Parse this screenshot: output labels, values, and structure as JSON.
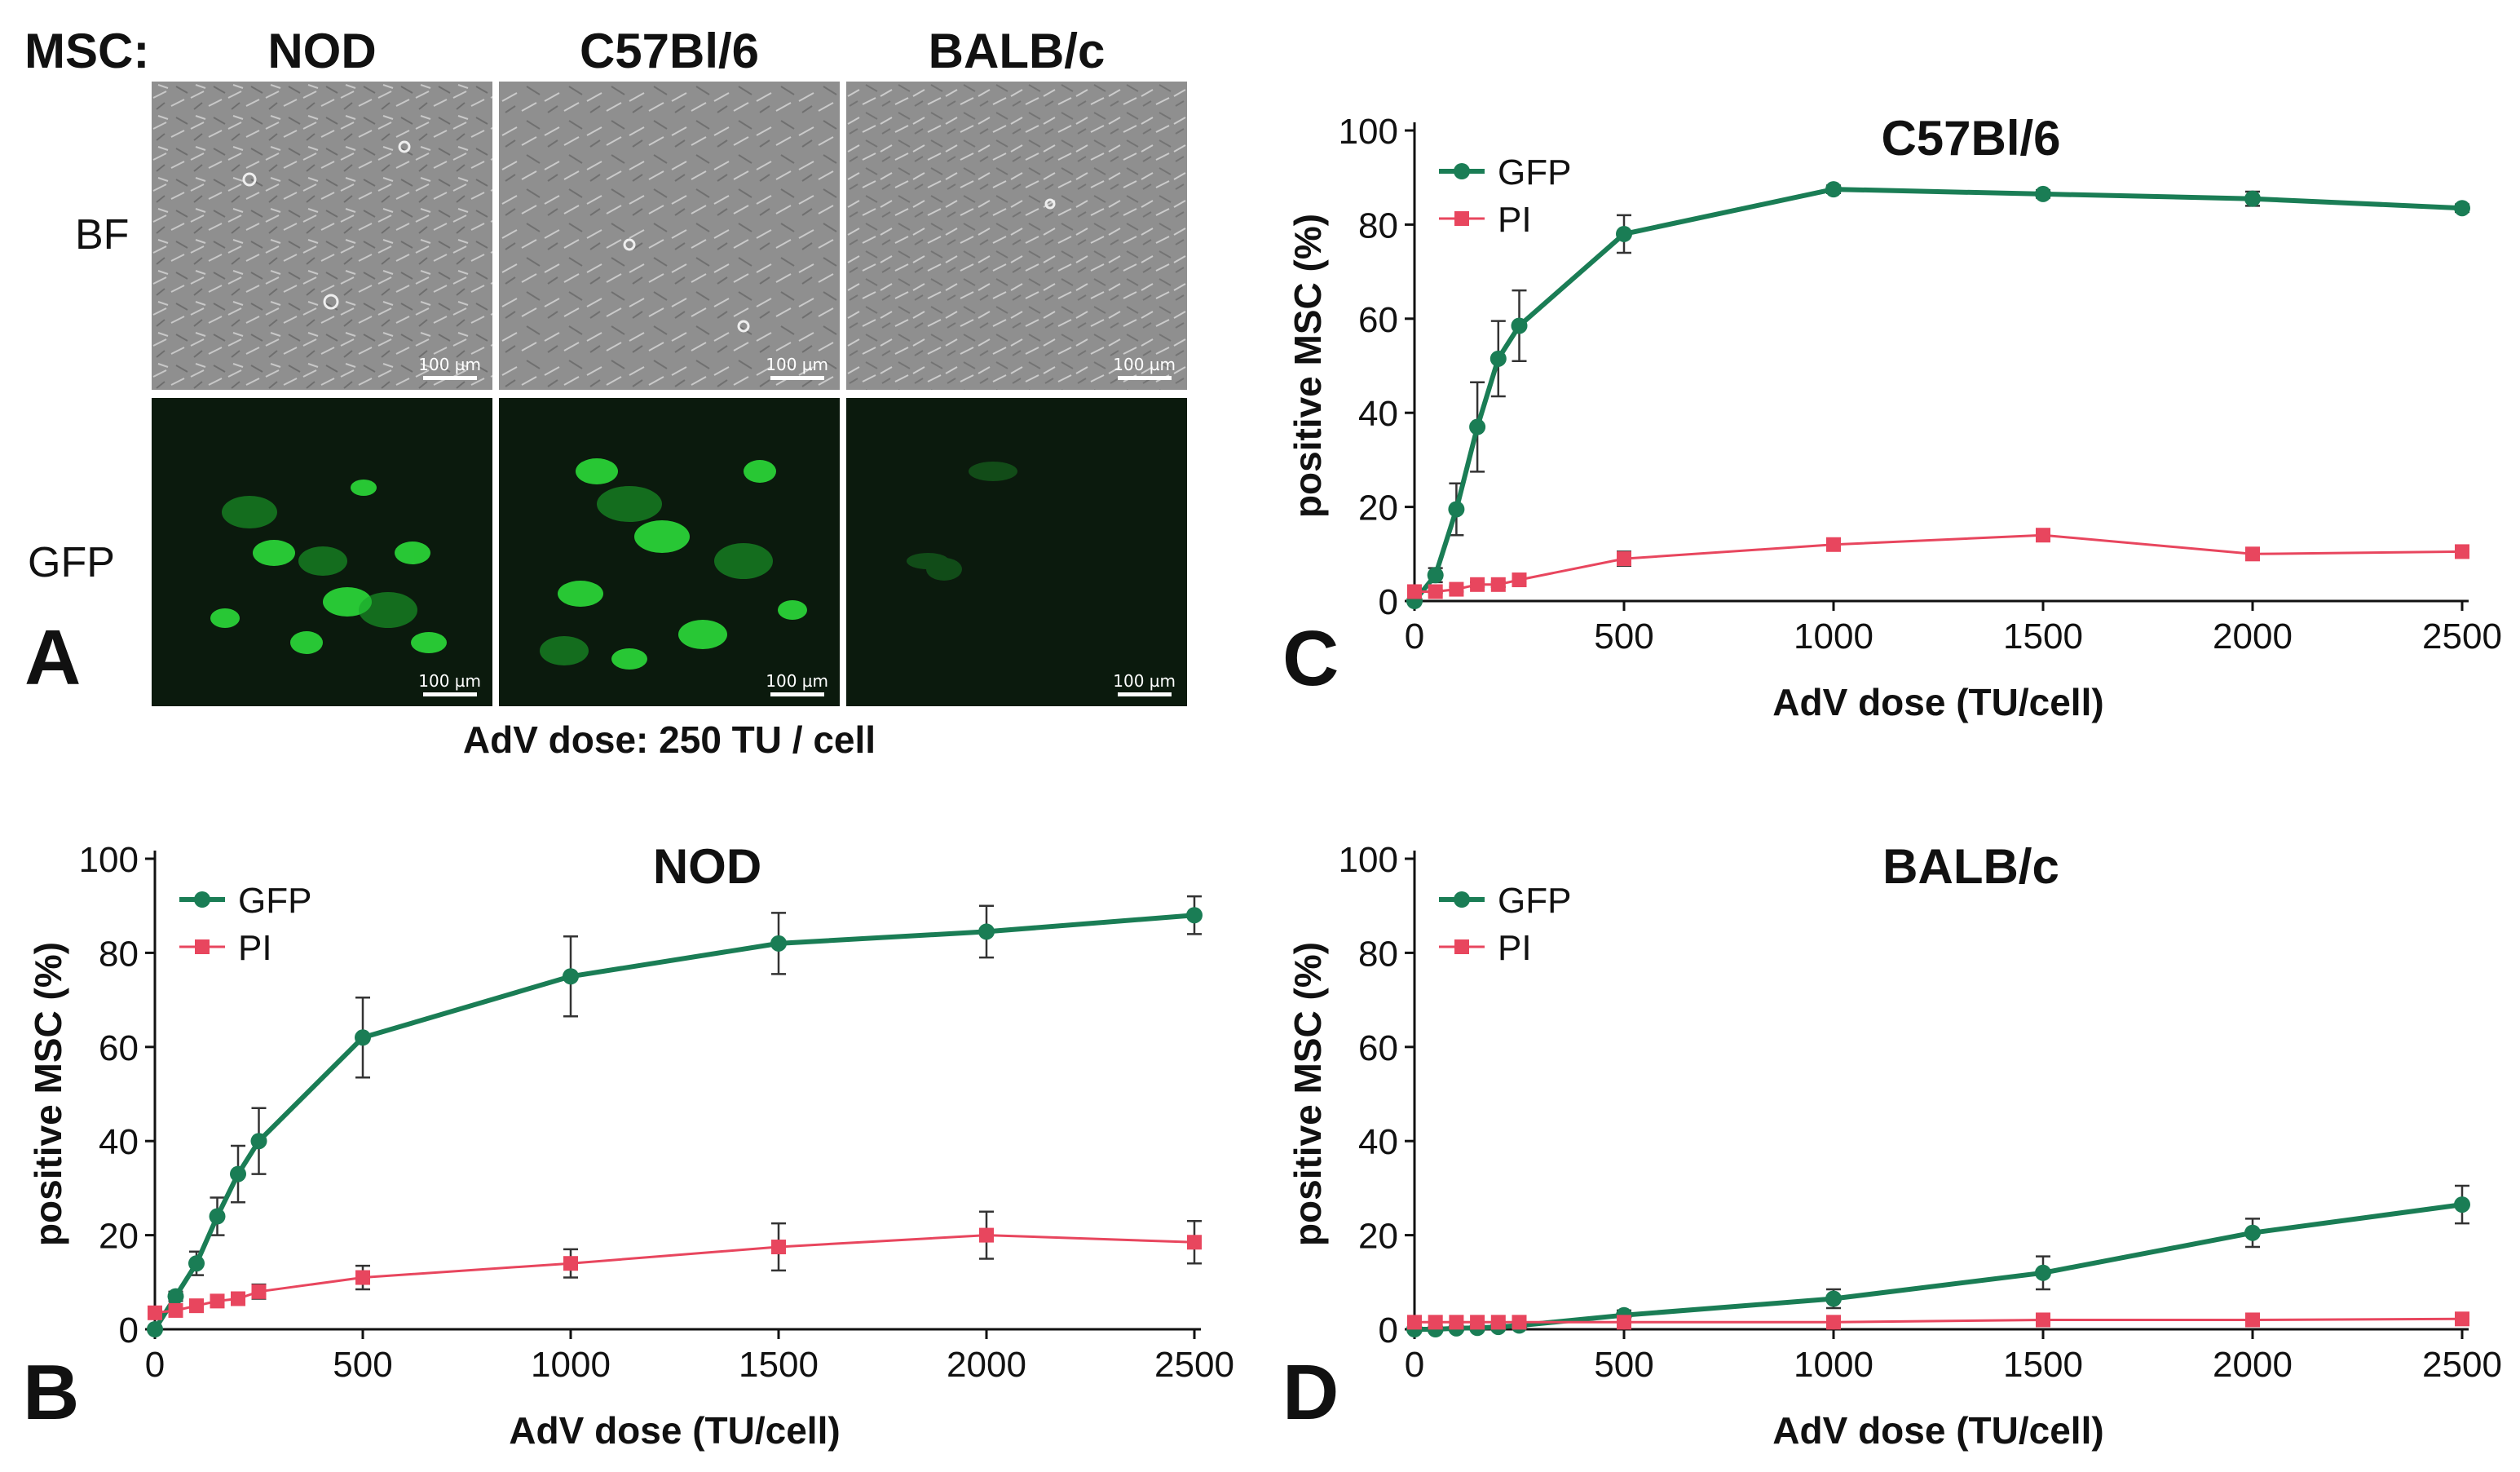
{
  "panel_a": {
    "letter": "A",
    "header_label": "MSC:",
    "columns": [
      "NOD",
      "C57Bl/6",
      "BALB/c"
    ],
    "rows": [
      "BF",
      "GFP"
    ],
    "scale_bar": "100 µm",
    "caption": "AdV dose: 250 TU / cell",
    "colors": {
      "brightfield": "#8f8f8f",
      "fluorescence": "#0b1a0d",
      "gfp_signal": "#2ee63c"
    }
  },
  "colors": {
    "gfp": "#1a7d55",
    "pi": "#e8465e",
    "error_bar": "#333333"
  },
  "chart_data": [
    {
      "panel": "B",
      "type": "line",
      "title": "NOD",
      "xlabel": "AdV dose (TU/cell)",
      "ylabel": "positive MSC (%)",
      "xlim": [
        0,
        2500
      ],
      "ylim": [
        0,
        100
      ],
      "xticks": [
        0,
        500,
        1000,
        1500,
        2000,
        2500
      ],
      "yticks": [
        0,
        20,
        40,
        60,
        80,
        100
      ],
      "legend_position": "top-left",
      "grid": false,
      "series": [
        {
          "name": "GFP",
          "marker": "circle",
          "x": [
            0,
            50,
            100,
            150,
            200,
            250,
            500,
            1000,
            1500,
            2000,
            2500
          ],
          "y": [
            0,
            7,
            14,
            24,
            33,
            40,
            62,
            75,
            82,
            84.5,
            88
          ],
          "err": [
            0,
            1,
            2.5,
            4,
            6,
            7,
            8.5,
            8.5,
            6.5,
            5.5,
            4
          ]
        },
        {
          "name": "PI",
          "marker": "square",
          "x": [
            0,
            50,
            100,
            150,
            200,
            250,
            500,
            1000,
            1500,
            2000,
            2500
          ],
          "y": [
            3.5,
            4,
            5,
            6,
            6.5,
            8,
            11,
            14,
            17.5,
            20,
            18.5
          ],
          "err": [
            0,
            0.5,
            0.8,
            1,
            1,
            1.5,
            2.5,
            3,
            5,
            5,
            4.5
          ]
        }
      ]
    },
    {
      "panel": "C",
      "type": "line",
      "title": "C57Bl/6",
      "xlabel": "AdV dose (TU/cell)",
      "ylabel": "positive MSC (%)",
      "xlim": [
        0,
        2500
      ],
      "ylim": [
        0,
        100
      ],
      "xticks": [
        0,
        500,
        1000,
        1500,
        2000,
        2500
      ],
      "yticks": [
        0,
        20,
        40,
        60,
        80,
        100
      ],
      "legend_position": "top-left",
      "grid": false,
      "series": [
        {
          "name": "GFP",
          "marker": "circle",
          "x": [
            0,
            50,
            100,
            150,
            200,
            250,
            500,
            1000,
            1500,
            2000,
            2500
          ],
          "y": [
            0,
            5.5,
            19.5,
            37,
            51.5,
            58.5,
            78,
            87.5,
            86.5,
            85.5,
            83.5
          ],
          "err": [
            0,
            1.5,
            5.5,
            9.5,
            8,
            7.5,
            4,
            0.8,
            0.8,
            1.5,
            0.8
          ]
        },
        {
          "name": "PI",
          "marker": "square",
          "x": [
            0,
            50,
            100,
            150,
            200,
            250,
            500,
            1000,
            1500,
            2000,
            2500
          ],
          "y": [
            2,
            2,
            2.5,
            3.5,
            3.5,
            4.5,
            9,
            12,
            14,
            10,
            10.5
          ],
          "err": [
            0,
            0.3,
            0.5,
            0.5,
            0.5,
            0.8,
            1.5,
            1,
            1,
            1,
            1
          ]
        }
      ]
    },
    {
      "panel": "D",
      "type": "line",
      "title": "BALB/c",
      "xlabel": "AdV dose (TU/cell)",
      "ylabel": "positive MSC (%)",
      "xlim": [
        0,
        2500
      ],
      "ylim": [
        0,
        100
      ],
      "xticks": [
        0,
        500,
        1000,
        1500,
        2000,
        2500
      ],
      "yticks": [
        0,
        20,
        40,
        60,
        80,
        100
      ],
      "legend_position": "top-left",
      "grid": false,
      "series": [
        {
          "name": "GFP",
          "marker": "circle",
          "x": [
            0,
            50,
            100,
            150,
            200,
            250,
            500,
            1000,
            1500,
            2000,
            2500
          ],
          "y": [
            0,
            0,
            0.2,
            0.3,
            0.5,
            0.8,
            3,
            6.5,
            12,
            20.5,
            26.5
          ],
          "err": [
            0,
            0,
            0,
            0,
            0,
            0.3,
            1,
            2,
            3.5,
            3,
            4
          ]
        },
        {
          "name": "PI",
          "marker": "square",
          "x": [
            0,
            50,
            100,
            150,
            200,
            250,
            500,
            1000,
            1500,
            2000,
            2500
          ],
          "y": [
            1.5,
            1.5,
            1.5,
            1.5,
            1.5,
            1.5,
            1.5,
            1.5,
            2,
            2,
            2.2
          ],
          "err": [
            0,
            0,
            0,
            0,
            0,
            0,
            0.3,
            0.3,
            0.3,
            0.3,
            0.3
          ]
        }
      ]
    }
  ]
}
